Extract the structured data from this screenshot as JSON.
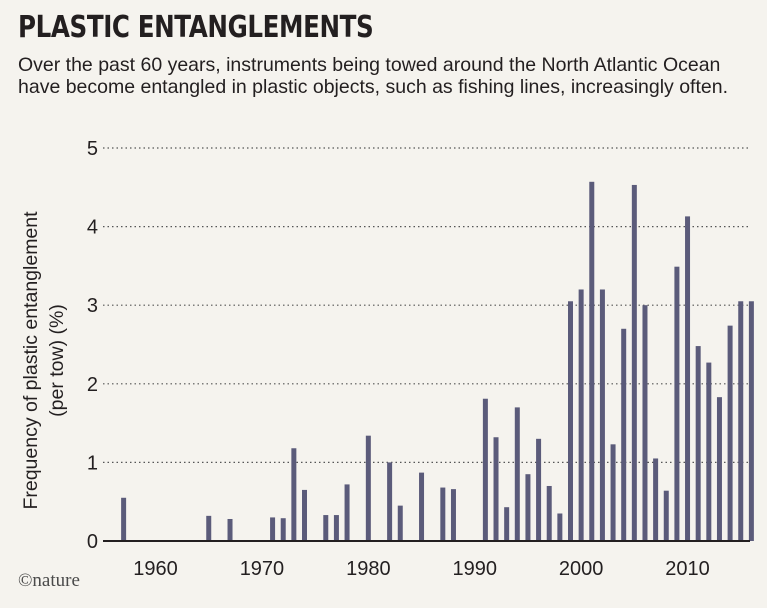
{
  "header": {
    "title": "PLASTIC ENTANGLEMENTS",
    "subtitle": "Over the past 60 years, instruments being towed around the North Atlantic Ocean have become entangled in plastic objects, such as fishing lines, increasingly often."
  },
  "footer": {
    "brand": "©nature"
  },
  "colors": {
    "bar": "#5b5b7a",
    "background": "#f5f3ee",
    "text": "#231f20",
    "grid": "#555555"
  },
  "chart_data": {
    "type": "bar",
    "title": "PLASTIC ENTANGLEMENTS",
    "xlabel": "",
    "ylabel": "Frequency of plastic entanglement (per tow) (%)",
    "ylim": [
      0,
      5
    ],
    "yticks": [
      0,
      1,
      2,
      3,
      4,
      5
    ],
    "xlim": [
      1955,
      2017
    ],
    "xticks": [
      1960,
      1970,
      1980,
      1990,
      2000,
      2010
    ],
    "grid": "horizontal dotted",
    "series": [
      {
        "x": [
          1957,
          1965,
          1967,
          1971,
          1972,
          1973,
          1974,
          1976,
          1977,
          1978,
          1980,
          1982,
          1983,
          1985,
          1987,
          1988,
          1991,
          1992,
          1993,
          1994,
          1995,
          1996,
          1997,
          1998,
          1999,
          2000,
          2001,
          2002,
          2003,
          2004,
          2005,
          2006,
          2007,
          2008,
          2009,
          2010,
          2011,
          2012,
          2013,
          2014,
          2015,
          2016
        ],
        "values": [
          0.55,
          0.32,
          0.28,
          0.3,
          0.29,
          1.18,
          0.65,
          0.33,
          0.33,
          0.72,
          1.34,
          1.0,
          0.45,
          0.87,
          0.68,
          0.66,
          1.81,
          1.32,
          0.43,
          1.7,
          0.85,
          1.3,
          0.7,
          0.35,
          3.05,
          3.2,
          4.57,
          3.2,
          1.23,
          2.7,
          4.53,
          3.0,
          1.05,
          0.64,
          3.49,
          4.13,
          2.48,
          2.27,
          1.83,
          2.74,
          3.05,
          3.05
        ]
      }
    ]
  }
}
